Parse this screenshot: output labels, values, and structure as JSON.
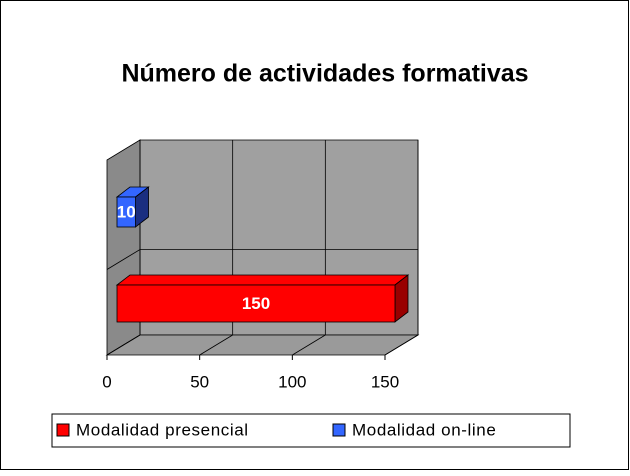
{
  "chart_data": {
    "type": "bar3d_horizontal",
    "title": "Número de actividades formativas",
    "categories": [
      null
    ],
    "series": [
      {
        "name": "Modalidad presencial",
        "color": "#ff0000",
        "values": [
          150
        ]
      },
      {
        "name": "Modalidad on-line",
        "color": "#3366ff",
        "values": [
          10
        ]
      }
    ],
    "xlim": [
      0,
      150
    ],
    "xticks": [
      0,
      50,
      100,
      150
    ],
    "grid": true,
    "legend": "bottom"
  }
}
